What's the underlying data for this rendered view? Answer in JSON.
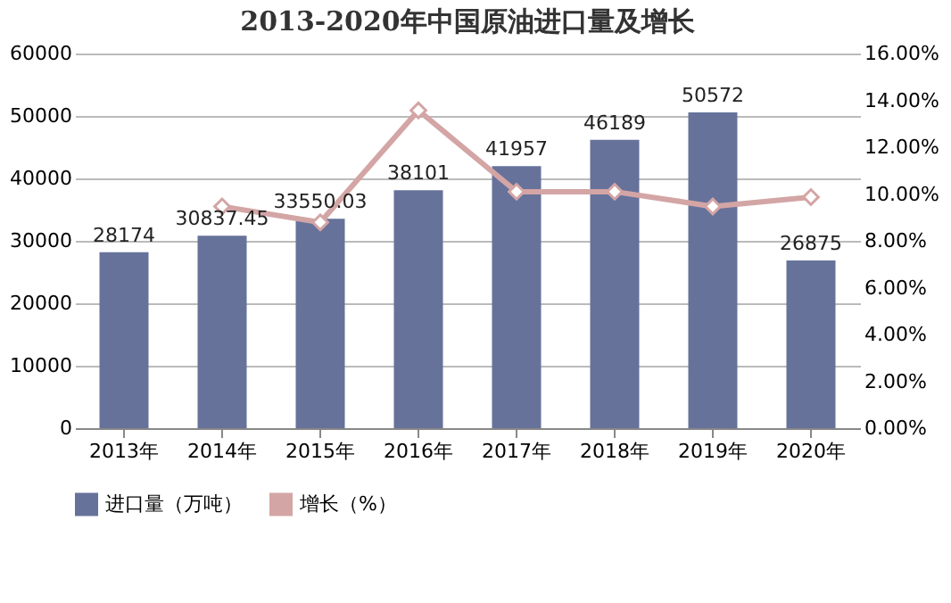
{
  "chart_data": {
    "type": "bar",
    "title": "2013-2020年中国原油进口量及增长",
    "categories": [
      "2013年",
      "2014年",
      "2015年",
      "2016年",
      "2017年",
      "2018年",
      "2019年",
      "2020年"
    ],
    "series": [
      {
        "name": "进口量（万吨）",
        "color": "#66729a",
        "values": [
          28174,
          30837.45,
          33550.03,
          38101,
          41957,
          46189,
          50572,
          26875
        ],
        "value_labels": [
          "28174",
          "30837.45",
          "33550.03",
          "38101",
          "41957",
          "46189",
          "50572",
          "26875"
        ]
      },
      {
        "name": "增长（%）",
        "type": "line",
        "axis": "y2",
        "color": "#d4a5a5",
        "marker": "diamond",
        "values": [
          null,
          9.47,
          8.79,
          13.57,
          10.1,
          10.1,
          9.47,
          9.87
        ]
      }
    ],
    "ylim": [
      0,
      60000
    ],
    "yticks": [
      0,
      10000,
      20000,
      30000,
      40000,
      50000,
      60000
    ],
    "y2lim": [
      0,
      16
    ],
    "y2ticks": [
      {
        "value": 0,
        "label": "0.00%"
      },
      {
        "value": 2,
        "label": "2.00%"
      },
      {
        "value": 4,
        "label": "4.00%"
      },
      {
        "value": 6,
        "label": "6.00%"
      },
      {
        "value": 8,
        "label": "8.00%"
      },
      {
        "value": 10,
        "label": "10.00%"
      },
      {
        "value": 12,
        "label": "12.00%"
      },
      {
        "value": 14,
        "label": "14.00%"
      },
      {
        "value": 16,
        "label": "16.00%"
      }
    ],
    "grid": "y",
    "legend": "bottom"
  }
}
